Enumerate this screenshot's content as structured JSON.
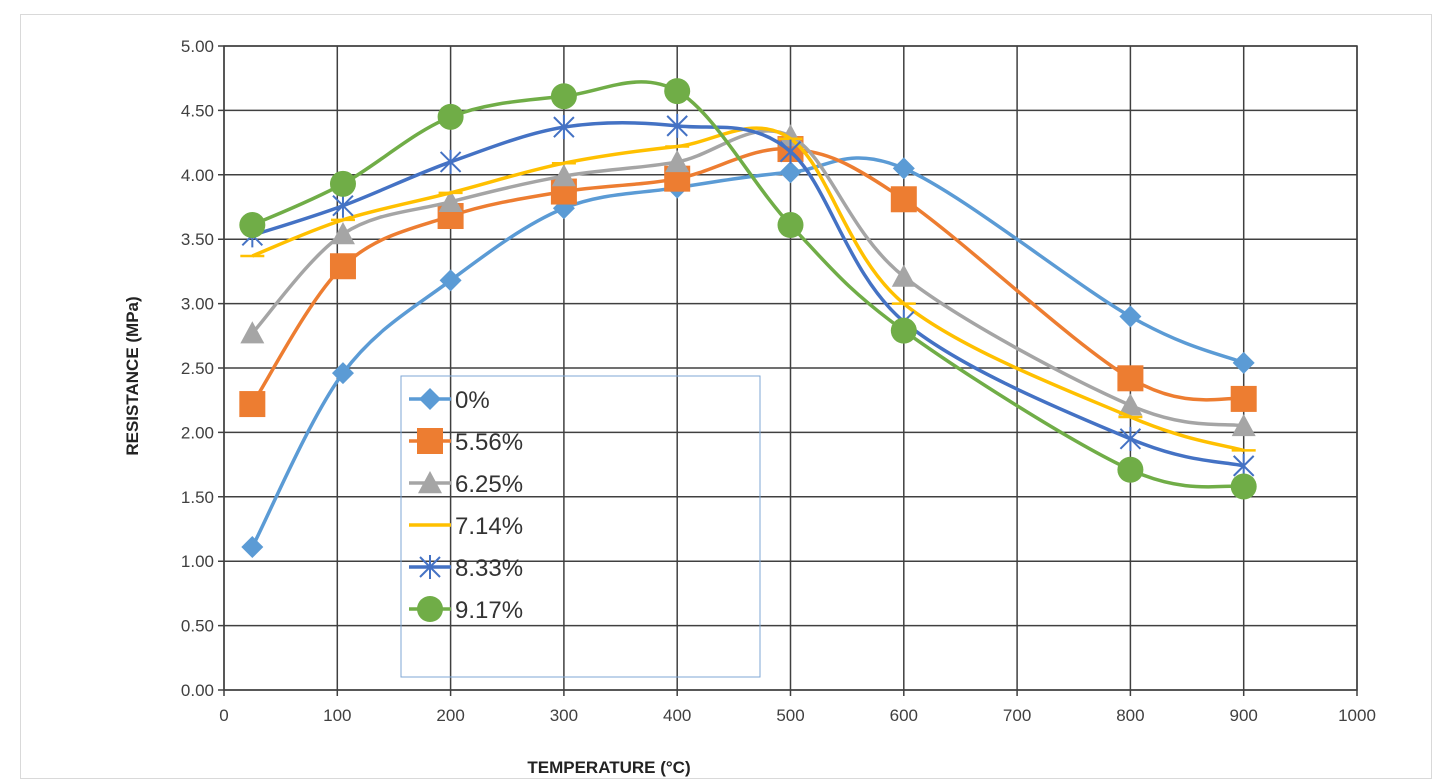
{
  "chart_data": {
    "type": "line",
    "title": "",
    "xlabel": "TEMPERATURE (°C)",
    "ylabel": "RESISTANCE (MPa)",
    "xlim": [
      0,
      1000
    ],
    "ylim": [
      0,
      5
    ],
    "xticks": [
      "0",
      "100",
      "200",
      "300",
      "400",
      "500",
      "600",
      "700",
      "800",
      "900",
      "1000"
    ],
    "yticks": [
      "0.00",
      "0.50",
      "1.00",
      "1.50",
      "2.00",
      "2.50",
      "3.00",
      "3.50",
      "4.00",
      "4.50",
      "5.00"
    ],
    "grid": true,
    "smooth": true,
    "legend_position": "center-left",
    "x": [
      25,
      105,
      200,
      300,
      400,
      500,
      600,
      800,
      900
    ],
    "series": [
      {
        "name": "0%",
        "color": "#5b9bd5",
        "marker": "diamond",
        "values": [
          1.11,
          2.46,
          3.18,
          3.74,
          3.9,
          4.02,
          4.05,
          2.9,
          2.54
        ]
      },
      {
        "name": "5.56%",
        "color": "#ed7d31",
        "marker": "square",
        "values": [
          2.22,
          3.29,
          3.68,
          3.87,
          3.97,
          4.2,
          3.81,
          2.42,
          2.26
        ]
      },
      {
        "name": "6.25%",
        "color": "#a5a5a5",
        "marker": "triangle",
        "values": [
          2.77,
          3.54,
          3.79,
          3.99,
          4.1,
          4.3,
          3.21,
          2.21,
          2.05
        ]
      },
      {
        "name": "7.14%",
        "color": "#ffc000",
        "marker": "plus",
        "values": [
          3.37,
          3.65,
          3.86,
          4.09,
          4.22,
          4.28,
          3.0,
          2.12,
          1.86
        ]
      },
      {
        "name": "8.33%",
        "color": "#4472c4",
        "marker": "star",
        "values": [
          3.53,
          3.76,
          4.1,
          4.37,
          4.38,
          4.18,
          2.86,
          1.95,
          1.74
        ]
      },
      {
        "name": "9.17%",
        "color": "#70ad47",
        "marker": "circle",
        "values": [
          3.61,
          3.93,
          4.45,
          4.61,
          4.65,
          3.61,
          2.79,
          1.71,
          1.58
        ]
      }
    ]
  }
}
